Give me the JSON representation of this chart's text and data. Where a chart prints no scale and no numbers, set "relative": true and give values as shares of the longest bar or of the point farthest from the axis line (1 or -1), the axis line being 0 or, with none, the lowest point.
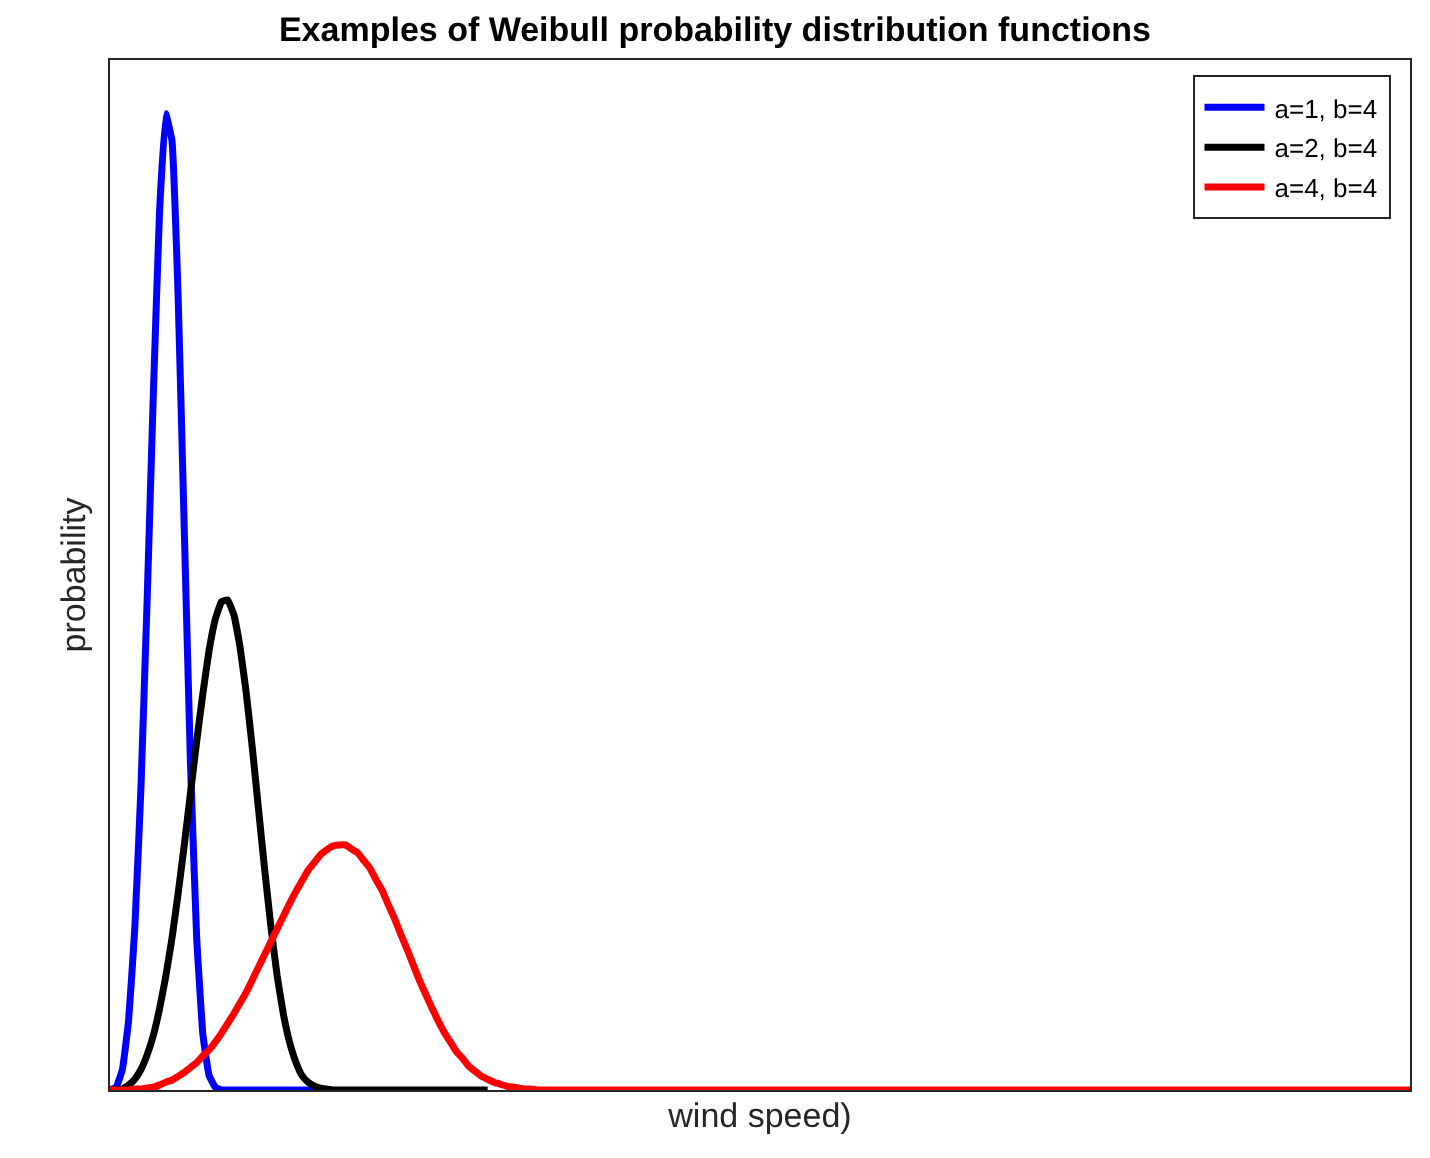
{
  "chart_data": {
    "type": "line",
    "title": "Examples of Weibull probability distribution functions",
    "xlabel": "wind speed)",
    "ylabel": "probability",
    "relative": true,
    "legend": "top right",
    "marker": "none",
    "line_style": "solid",
    "categories": [
      null,
      null,
      null,
      null,
      null,
      null,
      null,
      null,
      null,
      null,
      null,
      null,
      null,
      null,
      null,
      null,
      null,
      null,
      null,
      null,
      null,
      null,
      null,
      null,
      null,
      null,
      null,
      null,
      null,
      null,
      null,
      null,
      null,
      null,
      null,
      null,
      null,
      null,
      null,
      null,
      null,
      null,
      null,
      null,
      null,
      null,
      null,
      null,
      null,
      null,
      null,
      null,
      null,
      null,
      null,
      null,
      null,
      null,
      null,
      null,
      null,
      null,
      null,
      null,
      null,
      null,
      null,
      null,
      null,
      null,
      null,
      null,
      null,
      null,
      null,
      null,
      null,
      null,
      null,
      null,
      null,
      null,
      null,
      null,
      null,
      null,
      null,
      null,
      null,
      null,
      null,
      null,
      null,
      null,
      null,
      null,
      null,
      null,
      null,
      null,
      null,
      null,
      null,
      null,
      null,
      null,
      null,
      null,
      null,
      null,
      null,
      null,
      null,
      null,
      null,
      null,
      null,
      null,
      null,
      null,
      null,
      null,
      null,
      null,
      null,
      null,
      null,
      null,
      null,
      null,
      null,
      null,
      null,
      null,
      null,
      null,
      null,
      null,
      null,
      null,
      null,
      null,
      null,
      null,
      null,
      null,
      null,
      null,
      null,
      null,
      null,
      null,
      null,
      null,
      null,
      null,
      null,
      null,
      null,
      null,
      null,
      null,
      null,
      null,
      null,
      null,
      null,
      null,
      null,
      null,
      null,
      null,
      null,
      null,
      null,
      null,
      null,
      null,
      null,
      null,
      null,
      null,
      null,
      null,
      null,
      null,
      null,
      null,
      null,
      null,
      null,
      null,
      null,
      null,
      null,
      null,
      null,
      null,
      null,
      null,
      null,
      null,
      null,
      null,
      null,
      null,
      null,
      null,
      null,
      null,
      null
    ],
    "series": [
      {
        "name": "a=1, b=4",
        "color": "#0000ff",
        "values": [
          0,
          0.003,
          0.021,
          0.071,
          0.165,
          0.31,
          0.502,
          0.713,
          0.899,
          1.0,
          0.973,
          0.814,
          0.574,
          0.334,
          0.156,
          0.057,
          0.015,
          0.003,
          0,
          0,
          0,
          0,
          0,
          0,
          0,
          0,
          0,
          0,
          0,
          0,
          0,
          0,
          0,
          0,
          0,
          null,
          null,
          null,
          null,
          null,
          null,
          null,
          null,
          null,
          null,
          null,
          null,
          null,
          null,
          null,
          null,
          null,
          null,
          null,
          null,
          null,
          null,
          null,
          null,
          null,
          null,
          null,
          null,
          null,
          null,
          null,
          null,
          null,
          null,
          null,
          null,
          null,
          null,
          null,
          null,
          null,
          null,
          null,
          null,
          null,
          null,
          null,
          null,
          null,
          null,
          null,
          null,
          null,
          null,
          null,
          null,
          null,
          null,
          null,
          null,
          null,
          null,
          null,
          null,
          null,
          null,
          null,
          null,
          null,
          null,
          null,
          null,
          null,
          null,
          null,
          null,
          null,
          null,
          null,
          null,
          null,
          null,
          null,
          null,
          null,
          null,
          null,
          null,
          null,
          null,
          null,
          null,
          null,
          null,
          null,
          null,
          null,
          null,
          null,
          null,
          null,
          null,
          null,
          null,
          null,
          null,
          null,
          null,
          null,
          null,
          null,
          null,
          null,
          null,
          null,
          null,
          null,
          null,
          null,
          null,
          null,
          null,
          null,
          null,
          null,
          null,
          null,
          null,
          null,
          null,
          null,
          null,
          null,
          null,
          null,
          null,
          null,
          null,
          null,
          null,
          null,
          null,
          null,
          null,
          null,
          null,
          null,
          null,
          null,
          null,
          null,
          null,
          null,
          null,
          null,
          null,
          null,
          null,
          null,
          null,
          null,
          null,
          null,
          null,
          null,
          null,
          null,
          null,
          null,
          null,
          null,
          null,
          null,
          null,
          null,
          null
        ]
      },
      {
        "name": "a=2, b=4",
        "color": "#000000",
        "values": [
          0,
          0,
          0.001,
          0.005,
          0.011,
          0.021,
          0.036,
          0.056,
          0.083,
          0.116,
          0.155,
          0.201,
          0.251,
          0.304,
          0.357,
          0.406,
          0.45,
          0.482,
          0.5,
          0.502,
          0.487,
          0.454,
          0.407,
          0.35,
          0.287,
          0.225,
          0.167,
          0.117,
          0.078,
          0.049,
          0.029,
          0.015,
          0.008,
          0.004,
          0.002,
          0.001,
          0,
          0,
          0,
          0,
          0,
          0,
          0,
          0,
          0,
          0,
          0,
          0,
          0,
          0,
          0,
          0,
          0,
          0,
          0,
          0,
          0,
          0,
          0,
          0,
          0,
          0,
          null,
          null,
          null,
          null,
          null,
          null,
          null,
          null,
          null,
          null,
          null,
          null,
          null,
          null,
          null,
          null,
          null,
          null,
          null,
          null,
          null,
          null,
          null,
          null,
          null,
          null,
          null,
          null,
          null,
          null,
          null,
          null,
          null,
          null,
          null,
          null,
          null,
          null,
          null,
          null,
          null,
          null,
          null,
          null,
          null,
          null,
          null,
          null,
          null,
          null,
          null,
          null,
          null,
          null,
          null,
          null,
          null,
          null,
          null,
          null,
          null,
          null,
          null,
          null,
          null,
          null,
          null,
          null,
          null,
          null,
          null,
          null,
          null,
          null,
          null,
          null,
          null,
          null,
          null,
          null,
          null,
          null,
          null,
          null,
          null,
          null,
          null,
          null,
          null,
          null,
          null,
          null,
          null,
          null,
          null,
          null,
          null,
          null,
          null,
          null,
          null,
          null,
          null,
          null,
          null,
          null,
          null,
          null,
          null,
          null,
          null,
          null,
          null,
          null,
          null,
          null,
          null,
          null,
          null,
          null,
          null,
          null,
          null,
          null,
          null,
          null,
          null,
          null,
          null,
          null,
          null,
          null,
          null,
          null,
          null,
          null,
          null,
          null,
          null,
          null,
          null,
          null,
          null,
          null,
          null,
          null,
          null,
          null,
          null
        ]
      },
      {
        "name": "a=4, b=4",
        "color": "#ff0000",
        "values": [
          0,
          0,
          0,
          0,
          0.001,
          0.001,
          0.002,
          0.003,
          0.005,
          0.008,
          0.01,
          0.014,
          0.018,
          0.023,
          0.028,
          0.035,
          0.041,
          0.049,
          0.058,
          0.068,
          0.078,
          0.089,
          0.1,
          0.113,
          0.126,
          0.139,
          0.152,
          0.165,
          0.178,
          0.191,
          0.203,
          0.214,
          0.225,
          0.233,
          0.241,
          0.246,
          0.25,
          0.251,
          0.251,
          0.247,
          0.243,
          0.235,
          0.227,
          0.215,
          0.204,
          0.189,
          0.175,
          0.159,
          0.144,
          0.128,
          0.112,
          0.098,
          0.084,
          0.071,
          0.059,
          0.049,
          0.039,
          0.032,
          0.024,
          0.019,
          0.014,
          0.011,
          0.008,
          0.006,
          0.004,
          0.003,
          0.002,
          0.001,
          0.001,
          0,
          0,
          0,
          0,
          0,
          0,
          0,
          0,
          0,
          0,
          0,
          0,
          0,
          0,
          0,
          0,
          0,
          0,
          0,
          0,
          0,
          0,
          0,
          0,
          0,
          0,
          0,
          0,
          0,
          0,
          0,
          0,
          0,
          0,
          0,
          0,
          0,
          0,
          0,
          0,
          0,
          0,
          0,
          0,
          0,
          0,
          0,
          0,
          0,
          0,
          0,
          0,
          0,
          0,
          0,
          0,
          0,
          0,
          0,
          0,
          0,
          0,
          0,
          0,
          0,
          0,
          0,
          0,
          0,
          0,
          0,
          0,
          0,
          0,
          0,
          0,
          0,
          0,
          0,
          0,
          0,
          0,
          0,
          0,
          0,
          0,
          0,
          0,
          0,
          0,
          0,
          0,
          0,
          0,
          0,
          0,
          0,
          0,
          0,
          0,
          0,
          0,
          0,
          0,
          0,
          0,
          0,
          0,
          0,
          0,
          0,
          0,
          0,
          0,
          0,
          0,
          0,
          0,
          0,
          0,
          0,
          0,
          0,
          0,
          0,
          0,
          0,
          0,
          0,
          0,
          0,
          0,
          0,
          0,
          0,
          0,
          0,
          0,
          0,
          0,
          0,
          0
        ]
      }
    ]
  }
}
